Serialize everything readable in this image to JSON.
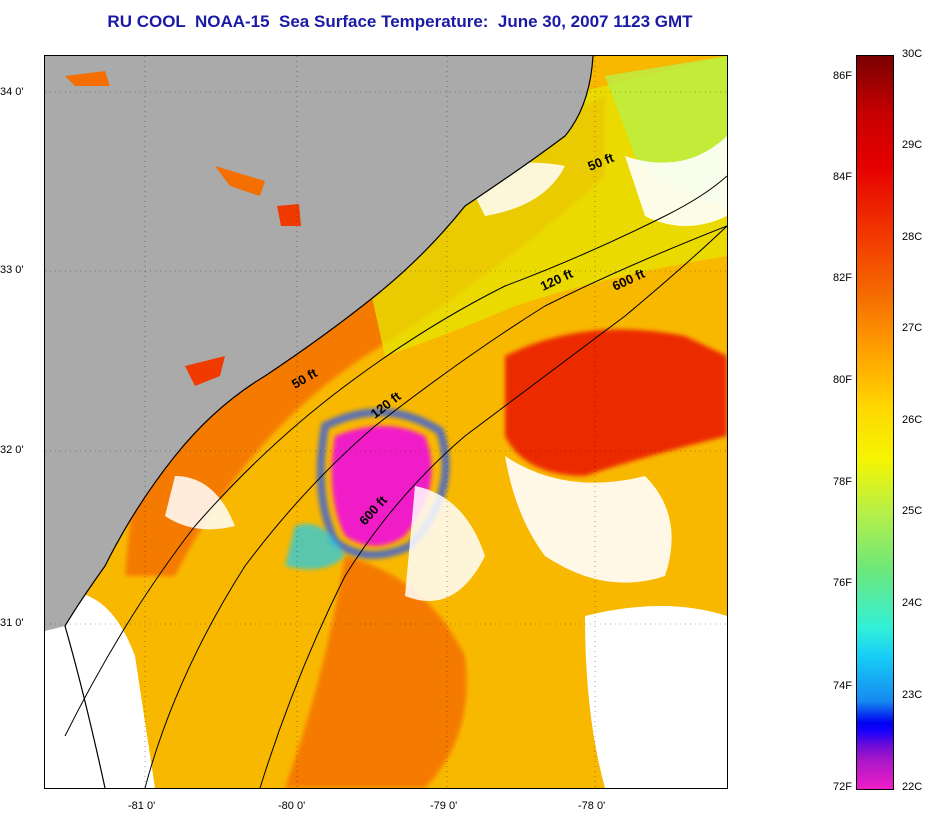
{
  "title": "RU COOL  NOAA-15  Sea Surface Temperature:  June 30, 2007 1123 GMT",
  "map": {
    "latitude_labels": [
      "34 0'",
      "33 0'",
      "32 0'",
      "31 0'"
    ],
    "longitude_labels": [
      "-81 0'",
      "-80 0'",
      "-79 0'",
      "-78 0'"
    ],
    "contour_labels": [
      "50 ft",
      "120 ft",
      "600 ft",
      "50 ft",
      "120 ft",
      "600 ft"
    ],
    "colors": {
      "land": "#aaaaaa",
      "cloud": "#ffffff",
      "warm": "#f56e00",
      "cool_front": "#f01ec8"
    }
  },
  "colorbar": {
    "fahrenheit_labels": [
      "86F",
      "84F",
      "82F",
      "80F",
      "78F",
      "76F",
      "74F",
      "72F"
    ],
    "celsius_labels": [
      "30C",
      "29C",
      "28C",
      "27C",
      "26C",
      "25C",
      "24C",
      "23C",
      "22C"
    ]
  }
}
